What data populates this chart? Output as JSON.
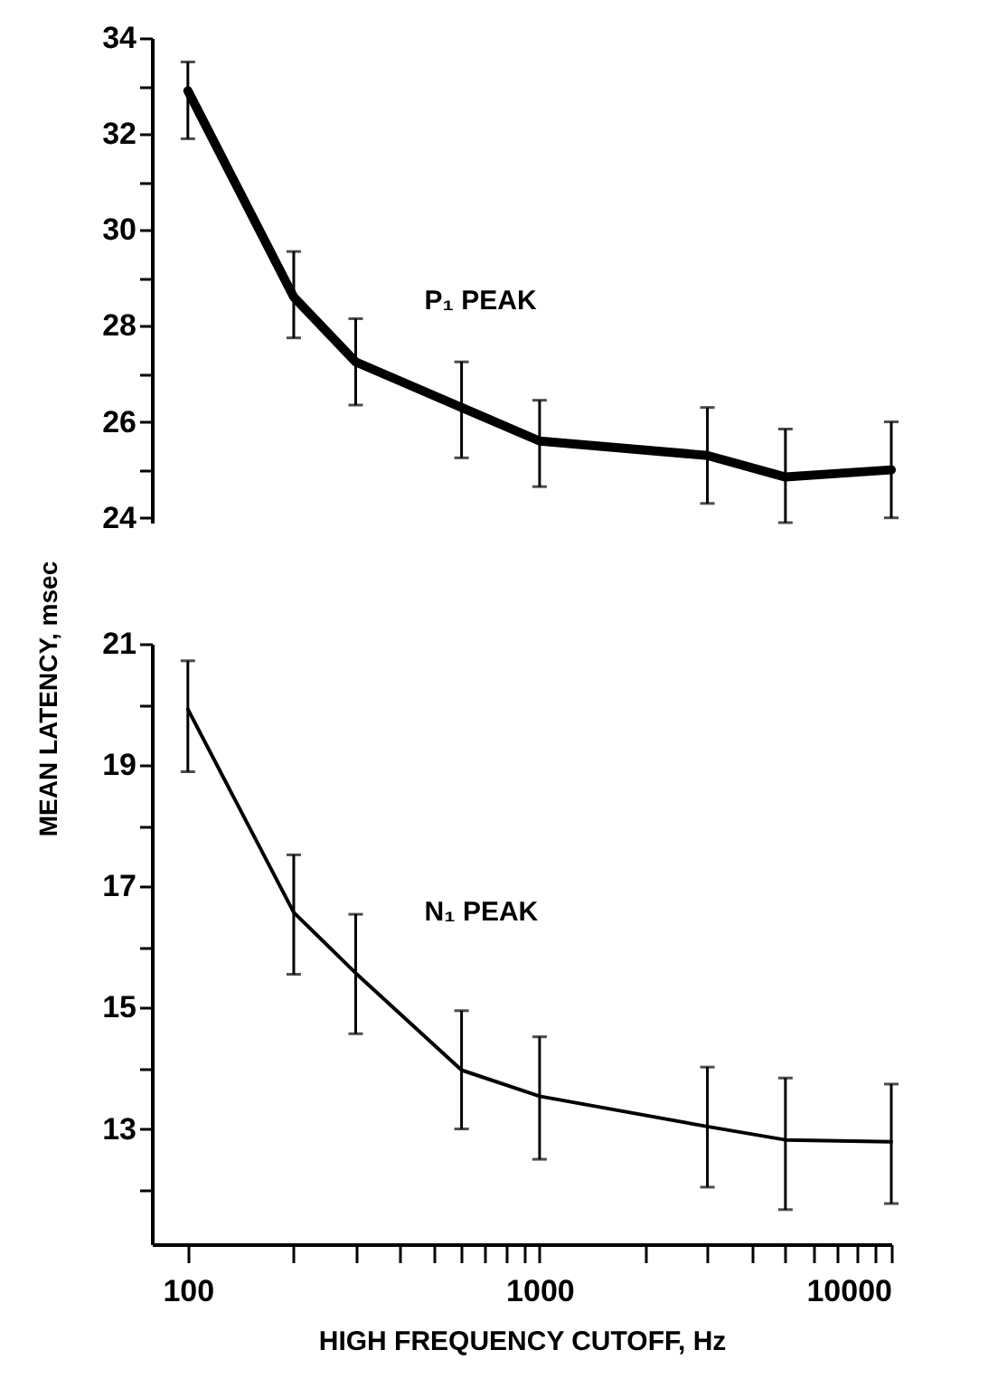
{
  "chart_data": [
    {
      "type": "line",
      "x": [
        100,
        200,
        300,
        600,
        1000,
        3000,
        5000,
        10000
      ],
      "xlim": [
        79,
        10000
      ],
      "tick_labels": "y",
      "ylim": [
        23.9,
        34
      ],
      "yticks": [
        24,
        {
          "value": 25,
          "label": null
        },
        26,
        {
          "value": 27,
          "label": null
        },
        28,
        {
          "value": 29,
          "label": null
        },
        30,
        {
          "value": 31,
          "label": null
        },
        32,
        {
          "value": 33,
          "label": null
        },
        34
      ],
      "series": [
        {
          "name": "P₁ PEAK",
          "color": "#000000",
          "values": [
            32.9,
            28.6,
            27.25,
            26.3,
            25.6,
            25.3,
            24.85,
            25.0
          ],
          "errors": [
            [
              31.9,
              33.5
            ],
            [
              27.75,
              29.55
            ],
            [
              26.35,
              28.15
            ],
            [
              25.25,
              27.25
            ],
            [
              24.65,
              26.45
            ],
            [
              24.3,
              26.3
            ],
            [
              23.9,
              25.85
            ],
            [
              24.0,
              26.0
            ]
          ]
        }
      ],
      "log": "x",
      "grid": false
    },
    {
      "type": "line",
      "x": [
        100,
        200,
        300,
        600,
        1000,
        3000,
        5000,
        10000
      ],
      "xlim": [
        79,
        10000
      ],
      "xticks": [
        100,
        {
          "value": 200,
          "label": null
        },
        {
          "value": 300,
          "label": null
        },
        {
          "value": 400,
          "label": null
        },
        {
          "value": 500,
          "label": null
        },
        {
          "value": 600,
          "label": null
        },
        {
          "value": 700,
          "label": null
        },
        {
          "value": 800,
          "label": null
        },
        {
          "value": 900,
          "label": null
        },
        1000,
        {
          "value": 2000,
          "label": null
        },
        {
          "value": 3000,
          "label": null
        },
        {
          "value": 4000,
          "label": null
        },
        {
          "value": 5000,
          "label": null
        },
        {
          "value": 6000,
          "label": null
        },
        {
          "value": 7000,
          "label": null
        },
        {
          "value": 8000,
          "label": null
        },
        {
          "value": 9000,
          "label": null
        },
        10000
      ],
      "ylim": [
        11.1,
        21
      ],
      "yticks": [
        {
          "value": 12,
          "label": null
        },
        13,
        {
          "value": 14,
          "label": null
        },
        15,
        {
          "value": 16,
          "label": null
        },
        17,
        {
          "value": 18,
          "label": null
        },
        19,
        {
          "value": 20,
          "label": null
        },
        21
      ],
      "xlabel": "HIGH FREQUENCY CUTOFF, Hz",
      "ylabel": "MEAN LATENCY, msec",
      "series": [
        {
          "name": "N₁ PEAK",
          "color": "#000000",
          "values": [
            19.92,
            16.57,
            15.57,
            13.97,
            13.54,
            13.04,
            12.82,
            12.79
          ],
          "errors": [
            [
              18.89,
              20.72
            ],
            [
              15.55,
              17.52
            ],
            [
              14.57,
              16.54
            ],
            [
              13.0,
              14.95
            ],
            [
              12.5,
              14.52
            ],
            [
              12.04,
              14.02
            ],
            [
              11.67,
              13.84
            ],
            [
              11.77,
              13.74
            ]
          ]
        }
      ],
      "log": "x",
      "grid": false
    }
  ]
}
